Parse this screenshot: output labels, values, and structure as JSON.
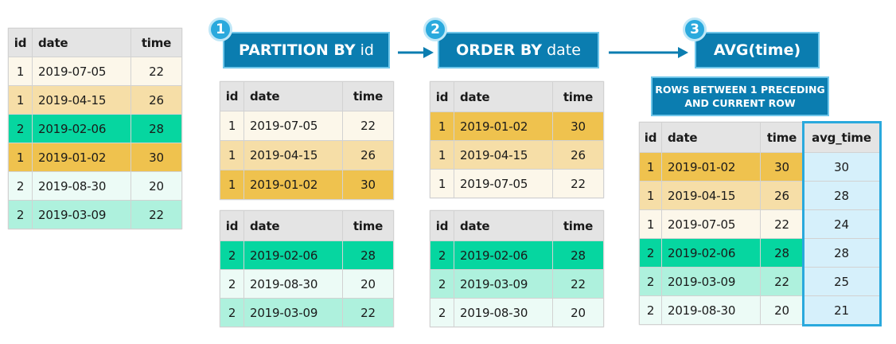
{
  "columns": {
    "id": "id",
    "date": "date",
    "time": "time",
    "avg_time": "avg_time"
  },
  "steps": [
    {
      "number": "1",
      "keyword": "PARTITION BY",
      "argument": "id"
    },
    {
      "number": "2",
      "keyword": "ORDER BY",
      "argument": "date"
    },
    {
      "number": "3",
      "keyword": "AVG(time)",
      "argument": ""
    }
  ],
  "frame_note": {
    "line1": "ROWS BETWEEN 1 PRECEDING",
    "line2": "AND CURRENT ROW"
  },
  "tables": {
    "source": [
      {
        "id": "1",
        "date": "2019-07-05",
        "time": "22",
        "color": "#fcf7ea"
      },
      {
        "id": "1",
        "date": "2019-04-15",
        "time": "26",
        "color": "#f6dea7"
      },
      {
        "id": "2",
        "date": "2019-02-06",
        "time": "28",
        "color": "#06d6a0"
      },
      {
        "id": "1",
        "date": "2019-01-02",
        "time": "30",
        "color": "#efc24e"
      },
      {
        "id": "2",
        "date": "2019-08-30",
        "time": "20",
        "color": "#ecfbf6"
      },
      {
        "id": "2",
        "date": "2019-03-09",
        "time": "22",
        "color": "#aef1dd"
      }
    ],
    "partition_id1": [
      {
        "id": "1",
        "date": "2019-07-05",
        "time": "22",
        "color": "#fcf7ea"
      },
      {
        "id": "1",
        "date": "2019-04-15",
        "time": "26",
        "color": "#f6dea7"
      },
      {
        "id": "1",
        "date": "2019-01-02",
        "time": "30",
        "color": "#efc24e"
      }
    ],
    "partition_id2": [
      {
        "id": "2",
        "date": "2019-02-06",
        "time": "28",
        "color": "#06d6a0"
      },
      {
        "id": "2",
        "date": "2019-08-30",
        "time": "20",
        "color": "#ecfbf6"
      },
      {
        "id": "2",
        "date": "2019-03-09",
        "time": "22",
        "color": "#aef1dd"
      }
    ],
    "ordered_id1": [
      {
        "id": "1",
        "date": "2019-01-02",
        "time": "30",
        "color": "#efc24e"
      },
      {
        "id": "1",
        "date": "2019-04-15",
        "time": "26",
        "color": "#f6dea7"
      },
      {
        "id": "1",
        "date": "2019-07-05",
        "time": "22",
        "color": "#fcf7ea"
      }
    ],
    "ordered_id2": [
      {
        "id": "2",
        "date": "2019-02-06",
        "time": "28",
        "color": "#06d6a0"
      },
      {
        "id": "2",
        "date": "2019-03-09",
        "time": "22",
        "color": "#aef1dd"
      },
      {
        "id": "2",
        "date": "2019-08-30",
        "time": "20",
        "color": "#ecfbf6"
      }
    ],
    "result": [
      {
        "id": "1",
        "date": "2019-01-02",
        "time": "30",
        "avg_time": "30",
        "color": "#efc24e"
      },
      {
        "id": "1",
        "date": "2019-04-15",
        "time": "26",
        "avg_time": "28",
        "color": "#f6dea7"
      },
      {
        "id": "1",
        "date": "2019-07-05",
        "time": "22",
        "avg_time": "24",
        "color": "#fcf7ea"
      },
      {
        "id": "2",
        "date": "2019-02-06",
        "time": "28",
        "avg_time": "28",
        "color": "#06d6a0"
      },
      {
        "id": "2",
        "date": "2019-03-09",
        "time": "22",
        "avg_time": "25",
        "color": "#aef1dd"
      },
      {
        "id": "2",
        "date": "2019-08-30",
        "time": "20",
        "avg_time": "21",
        "color": "#ecfbf6"
      }
    ]
  },
  "colors": {
    "box": "#0b7db0",
    "badge": "#2aa9dd",
    "avg_highlight": "#d6f0fb",
    "header": "#e4e4e4"
  }
}
